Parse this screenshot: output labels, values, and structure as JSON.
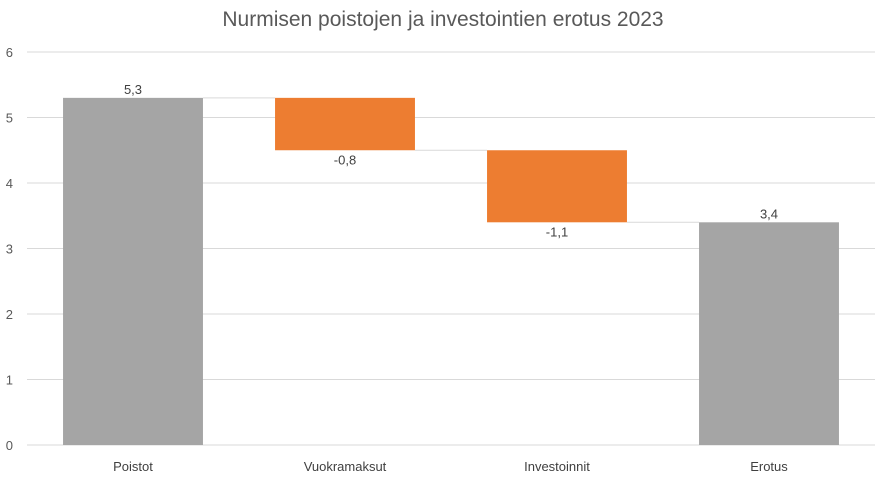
{
  "chart_data": {
    "type": "waterfall",
    "title": "Nurmisen poistojen ja investointien erotus 2023",
    "categories": [
      "Poistot",
      "Vuokramaksut",
      "Investoinnit",
      "Erotus"
    ],
    "values": [
      5.3,
      -0.8,
      -1.1,
      3.4
    ],
    "value_labels": [
      "5,3",
      "-0,8",
      "-1,1",
      "3,4"
    ],
    "kinds": [
      "total",
      "decrease",
      "decrease",
      "total"
    ],
    "ylim": [
      0,
      6
    ],
    "yticks": [
      "0",
      "1",
      "2",
      "3",
      "4",
      "5",
      "6"
    ],
    "grid": true,
    "legend": "none",
    "colors": {
      "total": "#a5a5a5",
      "decrease": "#ed7d31",
      "grid": "#d9d9d9",
      "connector": "#d9d9d9"
    }
  }
}
